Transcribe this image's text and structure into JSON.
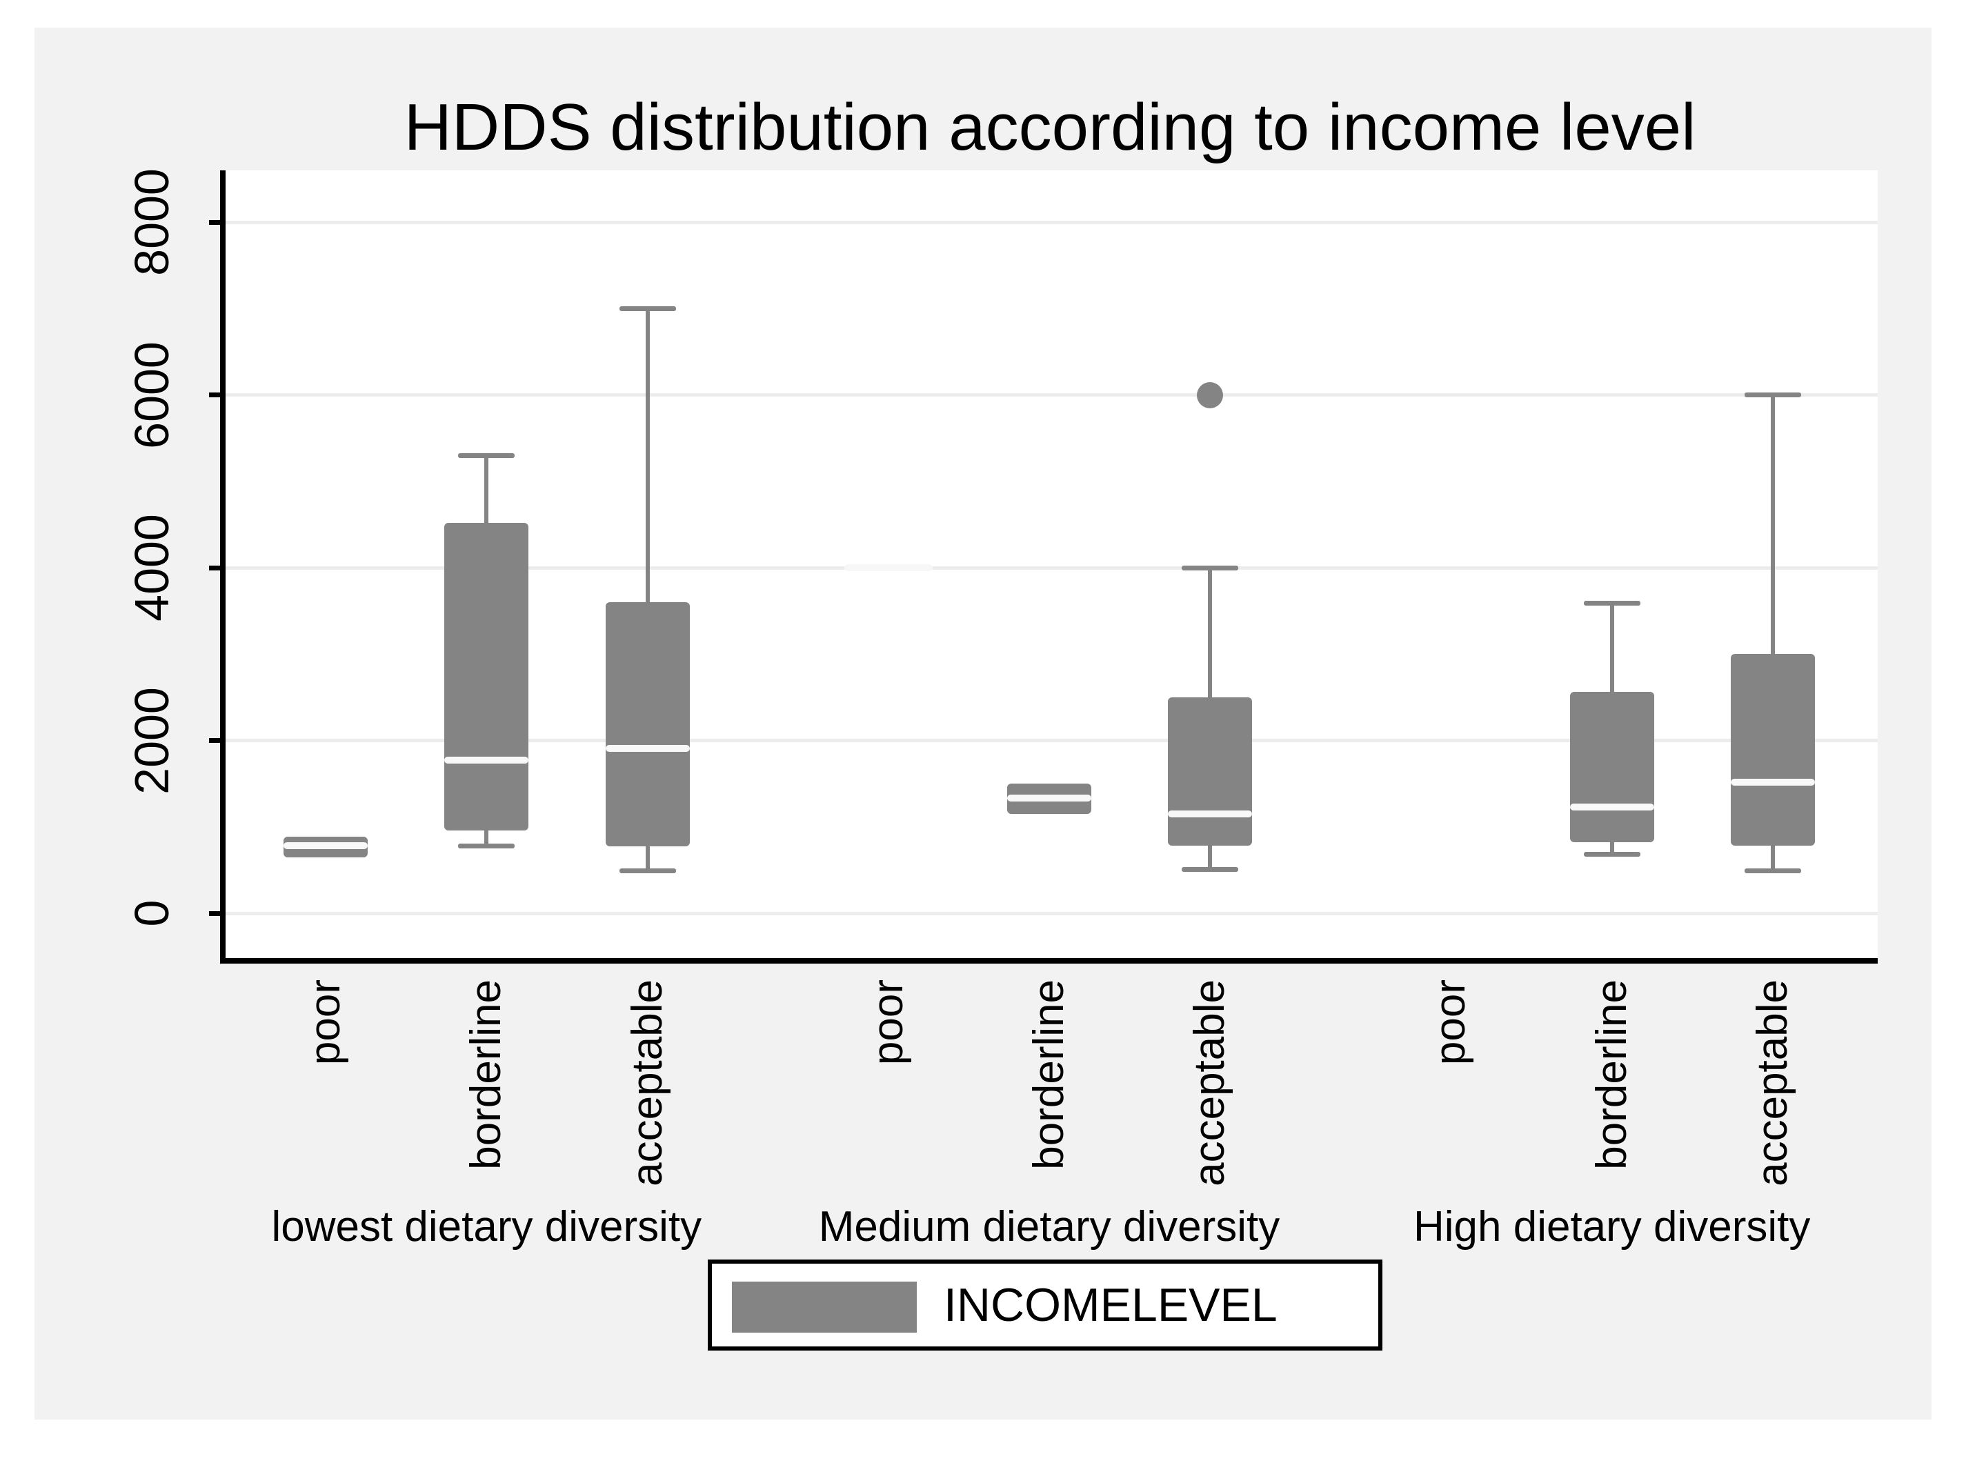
{
  "title": "HDDS distribution according to income level",
  "legend": {
    "label": "INCOMELEVEL",
    "swatch_color": "#848484"
  },
  "colors": {
    "figure_bg": "#f2f2f2",
    "plot_bg": "#ffffff",
    "grid": "#ececec",
    "box_fill": "#848484",
    "median_line": "#f8f8f8",
    "axis": "#000000"
  },
  "chart_data": {
    "type": "boxplot",
    "title": "HDDS distribution according to income level",
    "ylim": [
      0,
      8000
    ],
    "yticks": [
      "0",
      "2000",
      "4000",
      "6000",
      "8000"
    ],
    "ytick_values": [
      0,
      2000,
      4000,
      6000,
      8000
    ],
    "grid": "horizontal",
    "legend_position": "bottom",
    "categories": [
      "poor",
      "borderline",
      "acceptable"
    ],
    "groups": [
      {
        "label": "lowest dietary diversity",
        "boxes": [
          {
            "category": "poor",
            "q1": 650,
            "median": 780,
            "q3": 890
          },
          {
            "category": "borderline",
            "whisker_low": 780,
            "q1": 960,
            "median": 1770,
            "q3": 4520,
            "whisker_high": 5300
          },
          {
            "category": "acceptable",
            "whisker_low": 490,
            "q1": 775,
            "median": 1910,
            "q3": 3600,
            "whisker_high": 7000
          }
        ]
      },
      {
        "label": "Medium dietary diversity",
        "boxes": [
          {
            "category": "poor",
            "median": 4000,
            "median_only": true
          },
          {
            "category": "borderline",
            "q1": 1150,
            "median": 1330,
            "q3": 1500
          },
          {
            "category": "acceptable",
            "whisker_low": 510,
            "q1": 780,
            "median": 1150,
            "q3": 2500,
            "whisker_high": 4000,
            "outliers": [
              6000
            ]
          }
        ]
      },
      {
        "label": "High dietary diversity",
        "boxes": [
          {
            "category": "poor",
            "empty": true
          },
          {
            "category": "borderline",
            "whisker_low": 680,
            "q1": 820,
            "median": 1230,
            "q3": 2560,
            "whisker_high": 3590
          },
          {
            "category": "acceptable",
            "whisker_low": 490,
            "q1": 785,
            "median": 1520,
            "q3": 3000,
            "whisker_high": 6000
          }
        ]
      }
    ]
  }
}
